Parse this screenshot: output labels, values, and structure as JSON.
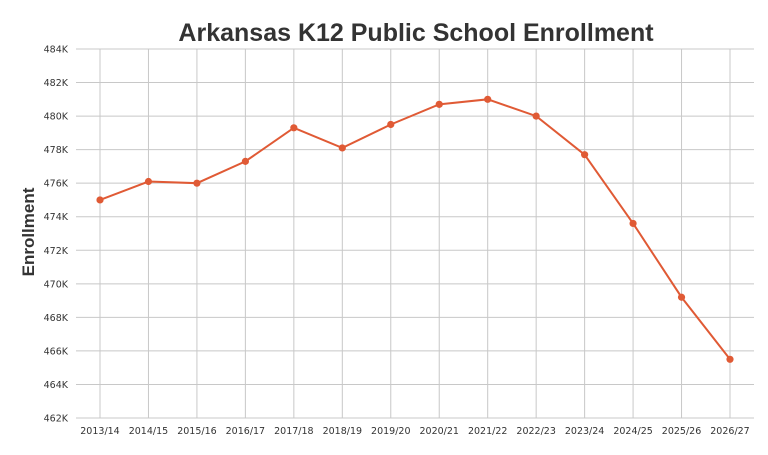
{
  "chart_data": {
    "type": "line",
    "title": "Arkansas K12 Public School Enrollment",
    "xlabel": "",
    "ylabel": "Enrollment",
    "categories": [
      "2013/14",
      "2014/15",
      "2015/16",
      "2016/17",
      "2017/18",
      "2018/19",
      "2019/20",
      "2020/21",
      "2021/22",
      "2022/23",
      "2023/24",
      "2024/25",
      "2025/26",
      "2026/27"
    ],
    "series": [
      {
        "values": [
          475000,
          476100,
          476000,
          477300,
          479300,
          478100,
          479500,
          480700,
          481000,
          480000,
          477700,
          473600,
          469200,
          465500
        ]
      }
    ],
    "ylim": [
      462000,
      484000
    ],
    "yticks": [
      462000,
      464000,
      466000,
      468000,
      470000,
      472000,
      474000,
      476000,
      478000,
      480000,
      482000,
      484000
    ],
    "ytick_labels": [
      "462K",
      "464K",
      "466K",
      "468K",
      "470K",
      "472K",
      "474K",
      "476K",
      "478K",
      "480K",
      "482K",
      "484K"
    ],
    "grid": true,
    "legend": "none",
    "line_color": "#e05a35"
  }
}
